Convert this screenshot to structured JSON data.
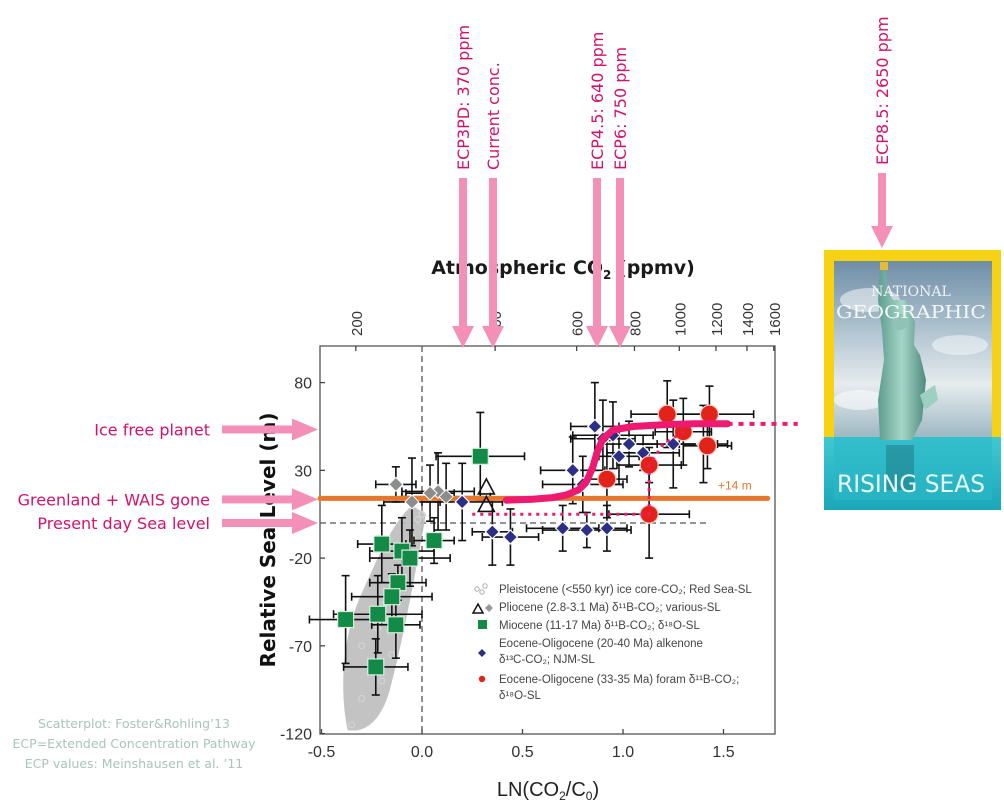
{
  "chart_data": {
    "type": "scatter",
    "title": "Atmospheric CO2 (ppmv)",
    "xlabel": "LN(CO2/C0)",
    "ylabel": "Relative Sea-Level (m)",
    "xlim": [
      -0.5,
      1.75
    ],
    "ylim": [
      -120,
      100
    ],
    "x_ticks": [
      -0.5,
      0.0,
      0.5,
      1.0,
      1.5
    ],
    "x_tick_labels": [
      "-0.5",
      "0.0",
      "0.5",
      "1.0",
      "1.5"
    ],
    "y_ticks": [
      80,
      30,
      -20,
      -70,
      -120
    ],
    "y_tick_labels": [
      "80",
      "30",
      "-20",
      "-70",
      "-120"
    ],
    "top_axis": {
      "label": "Atmospheric CO",
      "label_sub": "2",
      "label_suffix": " (ppmv)",
      "ppm_ticks": [
        200,
        400,
        600,
        800,
        1000,
        1200,
        1400,
        1600
      ],
      "ppm_tick_labels": [
        "200",
        "400",
        "600",
        "800",
        "1000",
        "1200",
        "1400",
        "1600"
      ],
      "c0_ppm": 278
    },
    "reference_lines": {
      "present_day": {
        "y": 0,
        "style": "dashed"
      },
      "preindustrial": {
        "x": 0,
        "style": "dashed"
      },
      "plus14": {
        "y": 14,
        "label": "+14 m",
        "color": "#e8772e",
        "x_range": [
          -0.5,
          1.72
        ]
      }
    },
    "fit_curve": {
      "color": "#ee1a72",
      "points": [
        [
          0.42,
          13
        ],
        [
          0.55,
          13.5
        ],
        [
          0.65,
          14.5
        ],
        [
          0.72,
          16
        ],
        [
          0.78,
          19
        ],
        [
          0.82,
          24
        ],
        [
          0.85,
          32
        ],
        [
          0.87,
          40
        ],
        [
          0.9,
          48
        ],
        [
          0.95,
          53
        ],
        [
          1.05,
          55
        ],
        [
          1.2,
          56
        ],
        [
          1.35,
          56.5
        ],
        [
          1.52,
          56.5
        ]
      ],
      "dotted_extension": [
        [
          1.52,
          56.5
        ],
        [
          1.72,
          56.5
        ]
      ]
    },
    "series": [
      {
        "name": "Pleistocene (<550 kyr) ice core-CO2; Red Sea-SL",
        "marker": "cloud",
        "color": "#bdbdbd",
        "points": [
          [
            -0.35,
            -115
          ],
          [
            -0.3,
            -100
          ],
          [
            -0.25,
            -85
          ],
          [
            -0.3,
            -70
          ],
          [
            -0.22,
            -60
          ],
          [
            -0.18,
            -45
          ],
          [
            -0.12,
            -30
          ],
          [
            -0.08,
            -20
          ],
          [
            -0.05,
            -8
          ],
          [
            -0.02,
            2
          ],
          [
            -0.1,
            -55
          ],
          [
            -0.2,
            -90
          ],
          [
            -0.15,
            -75
          ],
          [
            0.0,
            5
          ]
        ]
      },
      {
        "name": "Pliocene (2.8-3.1 Ma) δ11B-CO2; various-SL",
        "marker": "diamond",
        "color": "#8c8c8c",
        "points": [
          [
            -0.13,
            22
          ],
          [
            -0.05,
            12
          ],
          [
            0.08,
            18
          ],
          [
            0.12,
            15
          ],
          [
            0.04,
            17
          ]
        ],
        "triangles": [
          [
            0.32,
            20
          ],
          [
            0.32,
            10
          ]
        ]
      },
      {
        "name": "Miocene (11-17 Ma) δ11B-CO2; δ18O-SL",
        "marker": "square",
        "color": "#138a45",
        "points": [
          [
            0.29,
            38
          ],
          [
            -0.2,
            -12
          ],
          [
            -0.1,
            -16
          ],
          [
            -0.06,
            -20
          ],
          [
            0.06,
            -10
          ],
          [
            -0.12,
            -34
          ],
          [
            -0.38,
            -55
          ],
          [
            -0.22,
            -52
          ],
          [
            -0.13,
            -58
          ],
          [
            -0.23,
            -82
          ],
          [
            -0.15,
            -42
          ]
        ]
      },
      {
        "name": "Eocene-Oligocene (20-40 Ma) alkenone δ13C-CO2; NJM-SL",
        "marker": "diamond",
        "color": "#2b2f86",
        "points": [
          [
            0.2,
            12
          ],
          [
            0.35,
            -5
          ],
          [
            0.44,
            -8
          ],
          [
            0.7,
            -3
          ],
          [
            0.82,
            -4
          ],
          [
            0.86,
            55
          ],
          [
            0.9,
            48
          ],
          [
            0.95,
            50
          ],
          [
            0.98,
            38
          ],
          [
            1.03,
            45
          ],
          [
            1.1,
            40
          ],
          [
            1.25,
            45
          ],
          [
            1.4,
            45
          ],
          [
            0.75,
            30
          ],
          [
            0.8,
            22
          ],
          [
            0.92,
            -3
          ]
        ]
      },
      {
        "name": "Eocene-Oligocene (33-35 Ma) foram δ11B-CO2; δ18O-SL",
        "marker": "circle",
        "color": "#e2231a",
        "points": [
          [
            1.22,
            62
          ],
          [
            1.43,
            62
          ],
          [
            1.42,
            44
          ],
          [
            1.13,
            33
          ],
          [
            1.13,
            5
          ],
          [
            0.92,
            25
          ],
          [
            1.3,
            52
          ]
        ]
      }
    ],
    "legend_position": "bottom-right"
  },
  "legend": {
    "items": [
      {
        "line1": "Pleistocene (<550 kyr) ice core-CO₂; Red Sea-SL",
        "line2": ""
      },
      {
        "line1": "Pliocene (2.8-3.1 Ma) δ¹¹B-CO₂; various-SL",
        "line2": ""
      },
      {
        "line1": "Miocene (11-17 Ma) δ¹¹B-CO₂; δ¹⁸O-SL",
        "line2": ""
      },
      {
        "line1": "Eocene-Oligocene (20-40 Ma) alkenone",
        "line2": "δ¹³C-CO₂; NJM-SL"
      },
      {
        "line1": "Eocene-Oligocene (33-35 Ma) foram δ¹¹B-CO₂;",
        "line2": "δ¹⁸O-SL"
      }
    ]
  },
  "annotations": {
    "ecp_arrows": [
      {
        "label": "ECP3PD: 370 ppm",
        "ppm": 370
      },
      {
        "label": "Current conc.",
        "ppm": 400
      },
      {
        "label": "ECP4.5:  640 ppm",
        "ppm": 640
      },
      {
        "label": "ECP6:  750 ppm",
        "ppm": 750
      },
      {
        "label": "ECP8.5:  2650 ppm",
        "ppm": 2650
      }
    ],
    "level_arrows": [
      {
        "label": "Ice free planet",
        "y": 55
      },
      {
        "label": "Greenland + WAIS gone",
        "y": 14
      },
      {
        "label": "Present day Sea level",
        "y": 0
      }
    ],
    "plus14_label": "+14 m",
    "arrow_color": "#f48fb8",
    "text_color": "#d6106a"
  },
  "magazine": {
    "brand_line1": "NATIONAL",
    "brand_line2": "GEOGRAPHIC",
    "headline": "RISING SEAS",
    "border_color": "#f7d214"
  },
  "credits": [
    "Scatterplot: Foster&Rohling’13",
    "ECP=Extended Concentration Pathway",
    "ECP values: Meinshausen et al. ’11"
  ]
}
